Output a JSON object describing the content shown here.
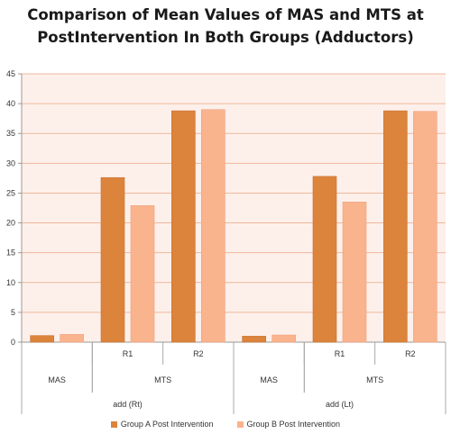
{
  "chart_data": {
    "type": "bar",
    "title_line1": "Comparison of Mean Values of MAS and MTS at",
    "title_line2": "PostIntervention In Both Groups (Adductors)",
    "ylim": [
      0,
      45
    ],
    "yticks": [
      "0",
      "5",
      "10",
      "15",
      "20",
      "25",
      "30",
      "35",
      "40",
      "45"
    ],
    "categories": [
      {
        "level1": "",
        "level2": "MAS",
        "level3": "add (Rt)"
      },
      {
        "level1": "R1",
        "level2": "MTS",
        "level3": "add (Rt)"
      },
      {
        "level1": "R2",
        "level2": "MTS",
        "level3": "add (Rt)"
      },
      {
        "level1": "",
        "level2": "MAS",
        "level3": "add (Lt)"
      },
      {
        "level1": "R1",
        "level2": "MTS",
        "level3": "add (Lt)"
      },
      {
        "level1": "R2",
        "level2": "MTS",
        "level3": "add (Lt)"
      }
    ],
    "level2_groups": [
      {
        "label": "MAS",
        "start": 0,
        "end": 0
      },
      {
        "label": "MTS",
        "start": 1,
        "end": 2
      },
      {
        "label": "MAS",
        "start": 3,
        "end": 3
      },
      {
        "label": "MTS",
        "start": 4,
        "end": 5
      }
    ],
    "level3_groups": [
      {
        "label": "add (Rt)",
        "start": 0,
        "end": 2
      },
      {
        "label": "add (Lt)",
        "start": 3,
        "end": 5
      }
    ],
    "series": [
      {
        "name": "Group A Post Intervention",
        "color": "#dc843c",
        "values": [
          1.1,
          27.6,
          38.8,
          1.0,
          27.8,
          38.8
        ]
      },
      {
        "name": "Group B Post Intervention",
        "color": "#f9b48e",
        "values": [
          1.3,
          22.9,
          39.0,
          1.2,
          23.5,
          38.7
        ]
      }
    ],
    "plot_background": "#fdf0ea",
    "grid": true,
    "legend_position": "bottom"
  }
}
